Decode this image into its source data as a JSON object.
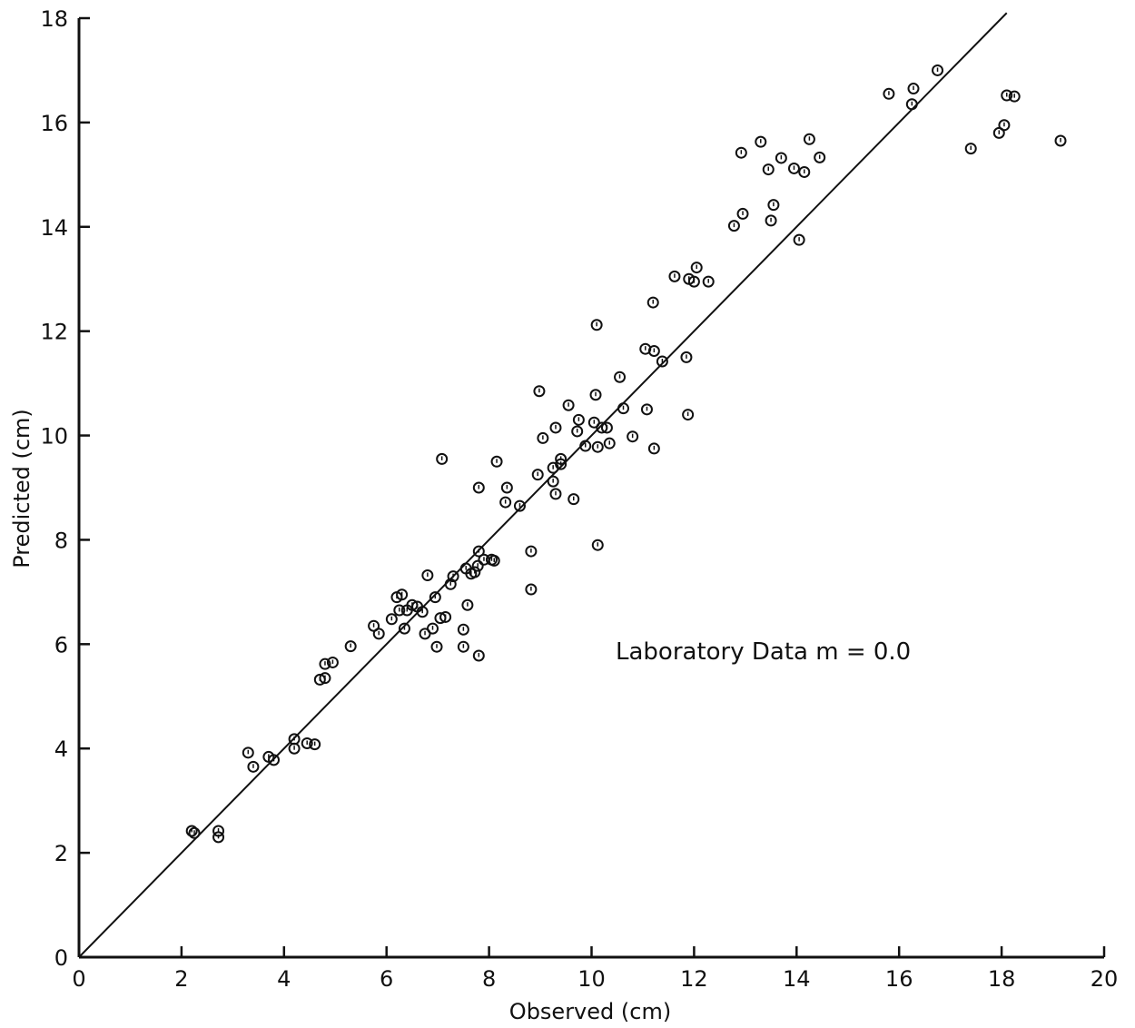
{
  "chart_data": {
    "type": "scatter",
    "title": "",
    "xlabel": "Observed (cm)",
    "ylabel": "Predicted (cm)",
    "xlim": [
      0,
      20
    ],
    "ylim": [
      0,
      18
    ],
    "x_ticks": [
      "0",
      "2",
      "4",
      "6",
      "8",
      "10",
      "12",
      "14",
      "16",
      "18",
      "20"
    ],
    "y_ticks": [
      "0",
      "2",
      "4",
      "6",
      "8",
      "10",
      "12",
      "14",
      "16",
      "18"
    ],
    "grid": false,
    "annotation": "Laboratory Data m = 0.0",
    "reference_line": {
      "x": [
        0,
        18.1
      ],
      "y": [
        0,
        18.1
      ]
    },
    "marker_color": "#111111",
    "series": [
      {
        "points": [
          [
            2.2,
            2.42
          ],
          [
            2.25,
            2.38
          ],
          [
            2.72,
            2.42
          ],
          [
            2.72,
            2.3
          ],
          [
            3.3,
            3.92
          ],
          [
            3.4,
            3.65
          ],
          [
            3.7,
            3.84
          ],
          [
            3.8,
            3.78
          ],
          [
            4.2,
            4.0
          ],
          [
            4.2,
            4.18
          ],
          [
            4.45,
            4.1
          ],
          [
            4.6,
            4.08
          ],
          [
            4.7,
            5.32
          ],
          [
            4.8,
            5.35
          ],
          [
            4.8,
            5.62
          ],
          [
            4.95,
            5.65
          ],
          [
            5.3,
            5.96
          ],
          [
            5.75,
            6.35
          ],
          [
            5.85,
            6.2
          ],
          [
            6.1,
            6.48
          ],
          [
            6.2,
            6.9
          ],
          [
            6.25,
            6.65
          ],
          [
            6.3,
            6.95
          ],
          [
            6.35,
            6.3
          ],
          [
            6.4,
            6.65
          ],
          [
            6.5,
            6.75
          ],
          [
            6.6,
            6.72
          ],
          [
            6.7,
            6.62
          ],
          [
            6.75,
            6.2
          ],
          [
            6.8,
            7.32
          ],
          [
            6.9,
            6.3
          ],
          [
            6.95,
            6.9
          ],
          [
            6.98,
            5.95
          ],
          [
            7.05,
            6.5
          ],
          [
            7.08,
            9.55
          ],
          [
            7.15,
            6.52
          ],
          [
            7.25,
            7.15
          ],
          [
            7.3,
            7.3
          ],
          [
            7.5,
            6.28
          ],
          [
            7.5,
            5.95
          ],
          [
            7.55,
            7.45
          ],
          [
            7.58,
            6.75
          ],
          [
            7.65,
            7.35
          ],
          [
            7.72,
            7.38
          ],
          [
            7.78,
            7.5
          ],
          [
            7.8,
            7.78
          ],
          [
            7.8,
            5.78
          ],
          [
            7.8,
            9.0
          ],
          [
            7.9,
            7.62
          ],
          [
            8.05,
            7.62
          ],
          [
            8.1,
            7.6
          ],
          [
            8.15,
            9.5
          ],
          [
            8.32,
            8.72
          ],
          [
            8.35,
            9.0
          ],
          [
            8.6,
            8.65
          ],
          [
            8.82,
            7.78
          ],
          [
            8.82,
            7.05
          ],
          [
            8.95,
            9.25
          ],
          [
            8.98,
            10.85
          ],
          [
            9.05,
            9.95
          ],
          [
            9.25,
            9.38
          ],
          [
            9.25,
            9.12
          ],
          [
            9.3,
            8.88
          ],
          [
            9.3,
            10.15
          ],
          [
            9.4,
            9.45
          ],
          [
            9.4,
            9.55
          ],
          [
            9.55,
            10.58
          ],
          [
            9.65,
            8.78
          ],
          [
            9.72,
            10.08
          ],
          [
            9.75,
            10.3
          ],
          [
            9.88,
            9.8
          ],
          [
            10.05,
            10.25
          ],
          [
            10.08,
            10.78
          ],
          [
            10.1,
            12.12
          ],
          [
            10.12,
            9.78
          ],
          [
            10.12,
            7.9
          ],
          [
            10.2,
            10.15
          ],
          [
            10.3,
            10.15
          ],
          [
            10.35,
            9.85
          ],
          [
            10.55,
            11.12
          ],
          [
            10.62,
            10.52
          ],
          [
            10.8,
            9.98
          ],
          [
            11.05,
            11.66
          ],
          [
            11.08,
            10.5
          ],
          [
            11.2,
            12.55
          ],
          [
            11.22,
            9.75
          ],
          [
            11.22,
            11.62
          ],
          [
            11.38,
            11.42
          ],
          [
            11.62,
            13.05
          ],
          [
            11.85,
            11.5
          ],
          [
            11.88,
            10.4
          ],
          [
            11.9,
            13.0
          ],
          [
            12.0,
            12.95
          ],
          [
            12.05,
            13.22
          ],
          [
            12.28,
            12.95
          ],
          [
            12.78,
            14.02
          ],
          [
            12.92,
            15.42
          ],
          [
            12.95,
            14.25
          ],
          [
            13.3,
            15.63
          ],
          [
            13.45,
            15.1
          ],
          [
            13.5,
            14.12
          ],
          [
            13.55,
            14.42
          ],
          [
            13.7,
            15.32
          ],
          [
            13.95,
            15.12
          ],
          [
            14.05,
            13.75
          ],
          [
            14.15,
            15.05
          ],
          [
            14.25,
            15.68
          ],
          [
            14.45,
            15.33
          ],
          [
            15.8,
            16.55
          ],
          [
            16.25,
            16.35
          ],
          [
            16.28,
            16.65
          ],
          [
            16.75,
            17.0
          ],
          [
            17.4,
            15.5
          ],
          [
            17.95,
            15.8
          ],
          [
            18.05,
            15.95
          ],
          [
            18.1,
            16.52
          ],
          [
            18.25,
            16.5
          ],
          [
            19.15,
            15.65
          ]
        ]
      }
    ]
  }
}
